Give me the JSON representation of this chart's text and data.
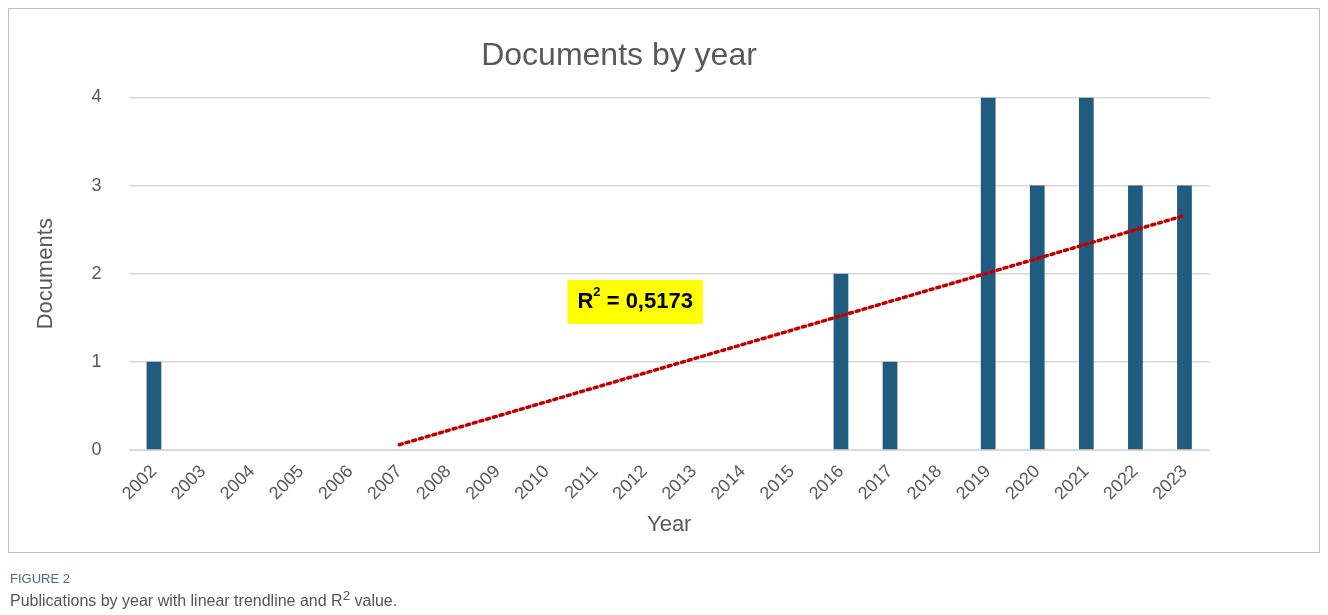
{
  "chart_data": {
    "type": "bar",
    "title": "Documents by year",
    "xlabel": "Year",
    "ylabel": "Documents",
    "categories": [
      "2002",
      "2003",
      "2004",
      "2005",
      "2006",
      "2007",
      "2008",
      "2009",
      "2010",
      "2011",
      "2012",
      "2013",
      "2014",
      "2015",
      "2016",
      "2017",
      "2018",
      "2019",
      "2020",
      "2021",
      "2022",
      "2023"
    ],
    "series": [
      {
        "color": "#1f5c7f",
        "values": [
          1,
          0,
          0,
          0,
          0,
          0,
          0,
          0,
          0,
          0,
          0,
          0,
          0,
          0,
          2,
          1,
          0,
          4,
          3,
          4,
          3,
          3
        ]
      },
      {
        "type": "line",
        "color": "#c00000",
        "values": [
          null,
          null,
          null,
          null,
          null,
          0.06,
          null,
          null,
          null,
          null,
          null,
          null,
          null,
          null,
          null,
          null,
          null,
          null,
          null,
          null,
          null,
          2.66
        ],
        "line_style": "dotted",
        "marker": "none"
      }
    ],
    "ylim": [
      0,
      4
    ],
    "yticks": [
      0,
      1,
      2,
      3,
      4
    ],
    "grid": "y",
    "legend": false,
    "annotations": [
      "R$^{2}$ = 0,5173",
      "FIGURE 2",
      "Publications by year with linear trendline and R$^{2}$ value."
    ]
  }
}
